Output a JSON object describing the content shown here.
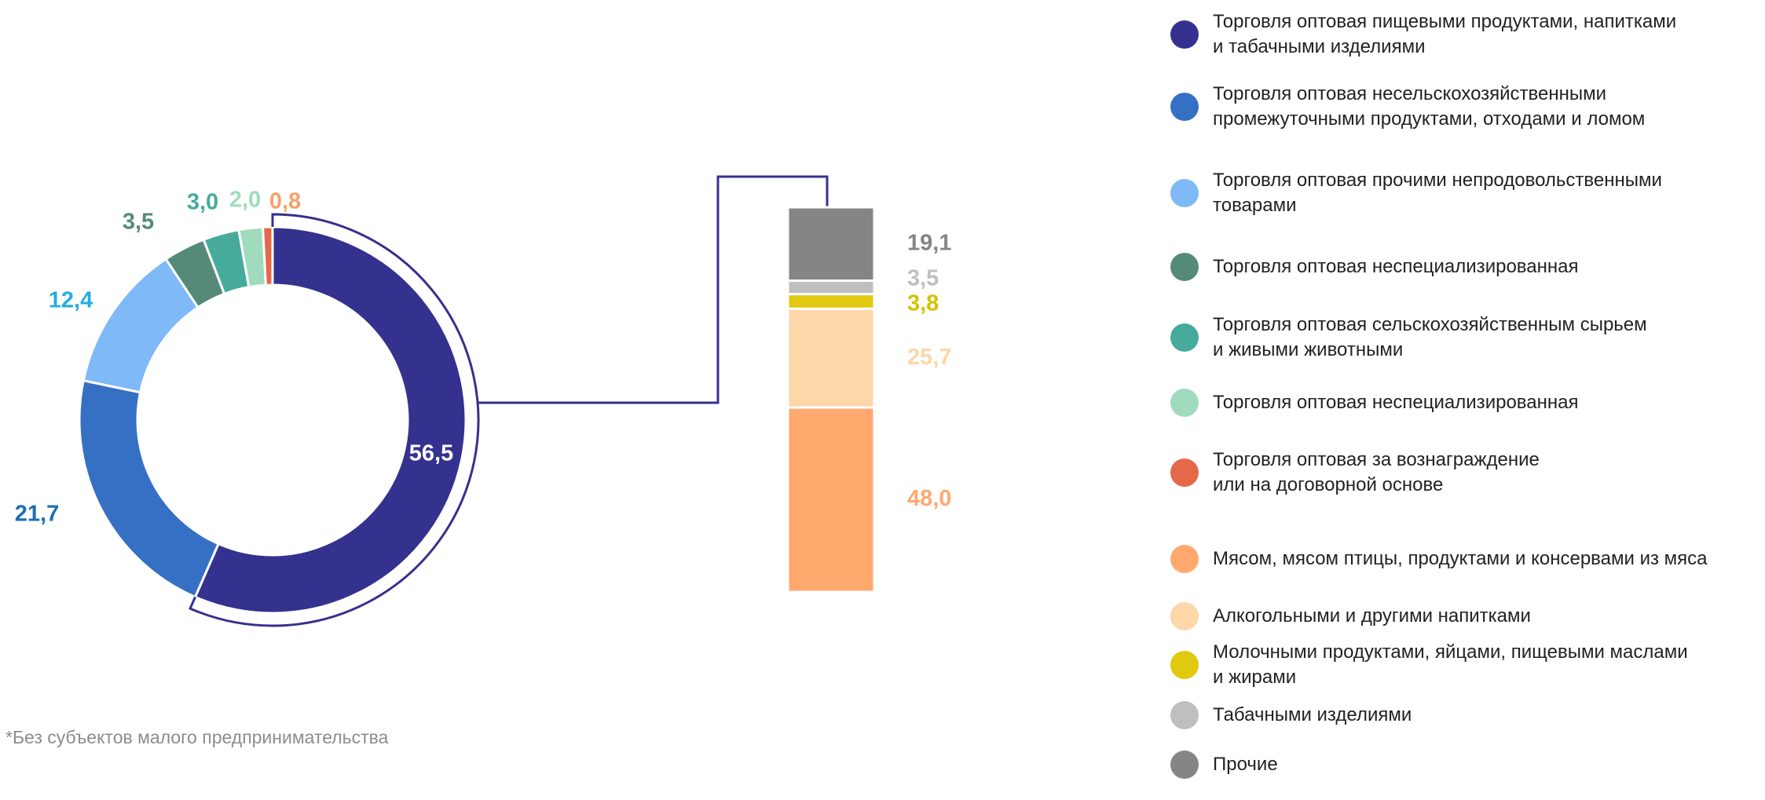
{
  "chart_data": [
    {
      "type": "donut",
      "categories": [
        "Торговля оптовая пищевыми продуктами, напитками\nи табачными изделиями",
        "Торговля оптовая несельскохозяйственными\nпромежуточными продуктами, отходами и ломом",
        "Торговля оптовая прочими непродовольственными\nтоварами",
        "Торговля оптовая неспециализированная",
        "Торговля оптовая сельскохозяйственным сырьем\nи живыми животными",
        "Торговля оптовая неспециализированная",
        "Торговля оптовая за вознаграждение\nили на договорной основе"
      ],
      "values": [
        56.5,
        21.7,
        12.4,
        3.5,
        3.0,
        2.0,
        0.8
      ],
      "value_labels": [
        "56,5",
        "21,7",
        "12,4",
        "3,5",
        "3,0",
        "2,0",
        "0,8"
      ],
      "colors": [
        "#35318f",
        "#3670c4",
        "#7fb9f7",
        "#558a78",
        "#46ab9b",
        "#a0dbbd",
        "#e5684a"
      ],
      "label_colors": [
        "#ffffff",
        "#1a6fb5",
        "#22aee0",
        "#558a78",
        "#46ab9b",
        "#a0dbbd",
        "#f7a26a"
      ],
      "note": "*Без субъектов малого предпринимательства"
    },
    {
      "type": "stacked-bar",
      "categories": [
        "Мясом, мясом птицы, продуктами и консервами из мяса",
        "Алкогольными и другими напитками",
        "Молочными продуктами, яйцами, пищевыми маслами\nи жирами",
        "Табачными изделиями",
        "Прочие"
      ],
      "values": [
        48.0,
        25.7,
        3.8,
        3.5,
        19.1
      ],
      "value_labels": [
        "48,0",
        "25,7",
        "3,8",
        "3,5",
        "19,1"
      ],
      "colors": [
        "#ffa96f",
        "#fdd6a9",
        "#e0c90e",
        "#bfbfbf",
        "#858585"
      ],
      "label_colors": [
        "#ffa96f",
        "#fdd6a9",
        "#d6c200",
        "#bfbfbf",
        "#858585"
      ]
    }
  ]
}
